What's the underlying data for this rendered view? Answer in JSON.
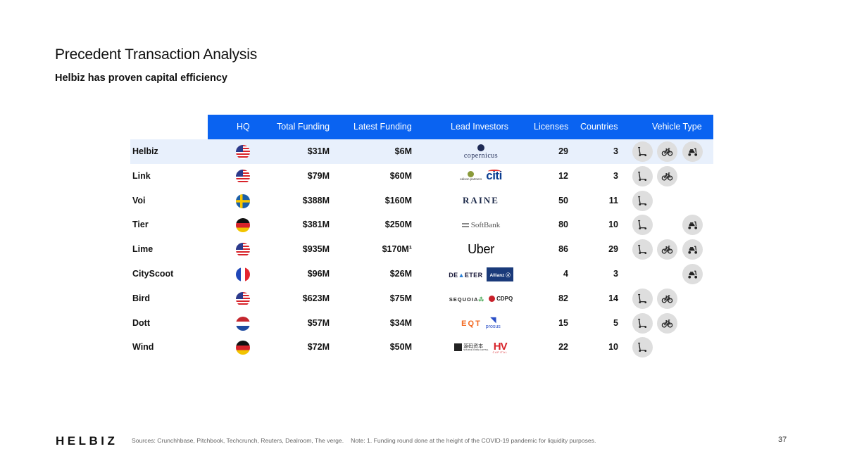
{
  "page": {
    "title": "Precedent Transaction Analysis",
    "subtitle": "Helbiz has proven capital efficiency",
    "logo": "HELBIZ",
    "sources": "Sources: Crunchhbase, Pitchbook, Techcrunch, Reuters, Dealroom, The verge.",
    "note": "Note: 1. Funding round done at the height of the COVID-19 pandemic for liquidity purposes.",
    "page_number": "37"
  },
  "table": {
    "headers": {
      "hq": "HQ",
      "total_funding": "Total Funding",
      "latest_funding": "Latest Funding",
      "lead_investors": "Lead Investors",
      "licenses": "Licenses",
      "countries": "Countries",
      "vehicle_type": "Vehicle Type"
    },
    "rows": [
      {
        "name": "Helbiz",
        "hq": "us",
        "total": "$31M",
        "latest": "$6M",
        "investors": [
          "copernicus"
        ],
        "licenses": "29",
        "countries": "3",
        "vehicles": [
          "scooter",
          "bike",
          "moped"
        ],
        "highlight": true
      },
      {
        "name": "Link",
        "hq": "us",
        "total": "$79M",
        "latest": "$60M",
        "investors": [
          "edison partners",
          "citi"
        ],
        "licenses": "12",
        "countries": "3",
        "vehicles": [
          "scooter",
          "bike"
        ],
        "highlight": false
      },
      {
        "name": "Voi",
        "hq": "se",
        "total": "$388M",
        "latest": "$160M",
        "investors": [
          "RAINE"
        ],
        "licenses": "50",
        "countries": "11",
        "vehicles": [
          "scooter"
        ],
        "highlight": false
      },
      {
        "name": "Tier",
        "hq": "de",
        "total": "$381M",
        "latest": "$250M",
        "investors": [
          "SoftBank"
        ],
        "licenses": "80",
        "countries": "10",
        "vehicles": [
          "scooter",
          "",
          "moped"
        ],
        "highlight": false
      },
      {
        "name": "Lime",
        "hq": "us",
        "total": "$935M",
        "latest": "$170M¹",
        "investors": [
          "Uber"
        ],
        "licenses": "86",
        "countries": "29",
        "vehicles": [
          "scooter",
          "bike",
          "moped"
        ],
        "highlight": false
      },
      {
        "name": "CityScoot",
        "hq": "fr",
        "total": "$96M",
        "latest": "$26M",
        "investors": [
          "DEMETER",
          "Allianz"
        ],
        "licenses": "4",
        "countries": "3",
        "vehicles": [
          "",
          "",
          "moped"
        ],
        "highlight": false
      },
      {
        "name": "Bird",
        "hq": "us",
        "total": "$623M",
        "latest": "$75M",
        "investors": [
          "SEQUOIA",
          "CDPQ"
        ],
        "licenses": "82",
        "countries": "14",
        "vehicles": [
          "scooter",
          "bike"
        ],
        "highlight": false
      },
      {
        "name": "Dott",
        "hq": "nl",
        "total": "$57M",
        "latest": "$34M",
        "investors": [
          "EQT",
          "prosus"
        ],
        "licenses": "15",
        "countries": "5",
        "vehicles": [
          "scooter",
          "bike"
        ],
        "highlight": false
      },
      {
        "name": "Wind",
        "hq": "de",
        "total": "$72M",
        "latest": "$50M",
        "investors": [
          "源码资本",
          "HV"
        ],
        "licenses": "22",
        "countries": "10",
        "vehicles": [
          "scooter"
        ],
        "highlight": false
      }
    ]
  },
  "colors": {
    "header_bg": "#0a63f1",
    "highlight_row": "#e8f0fc",
    "vehicle_icon_bg": "#dedede"
  }
}
